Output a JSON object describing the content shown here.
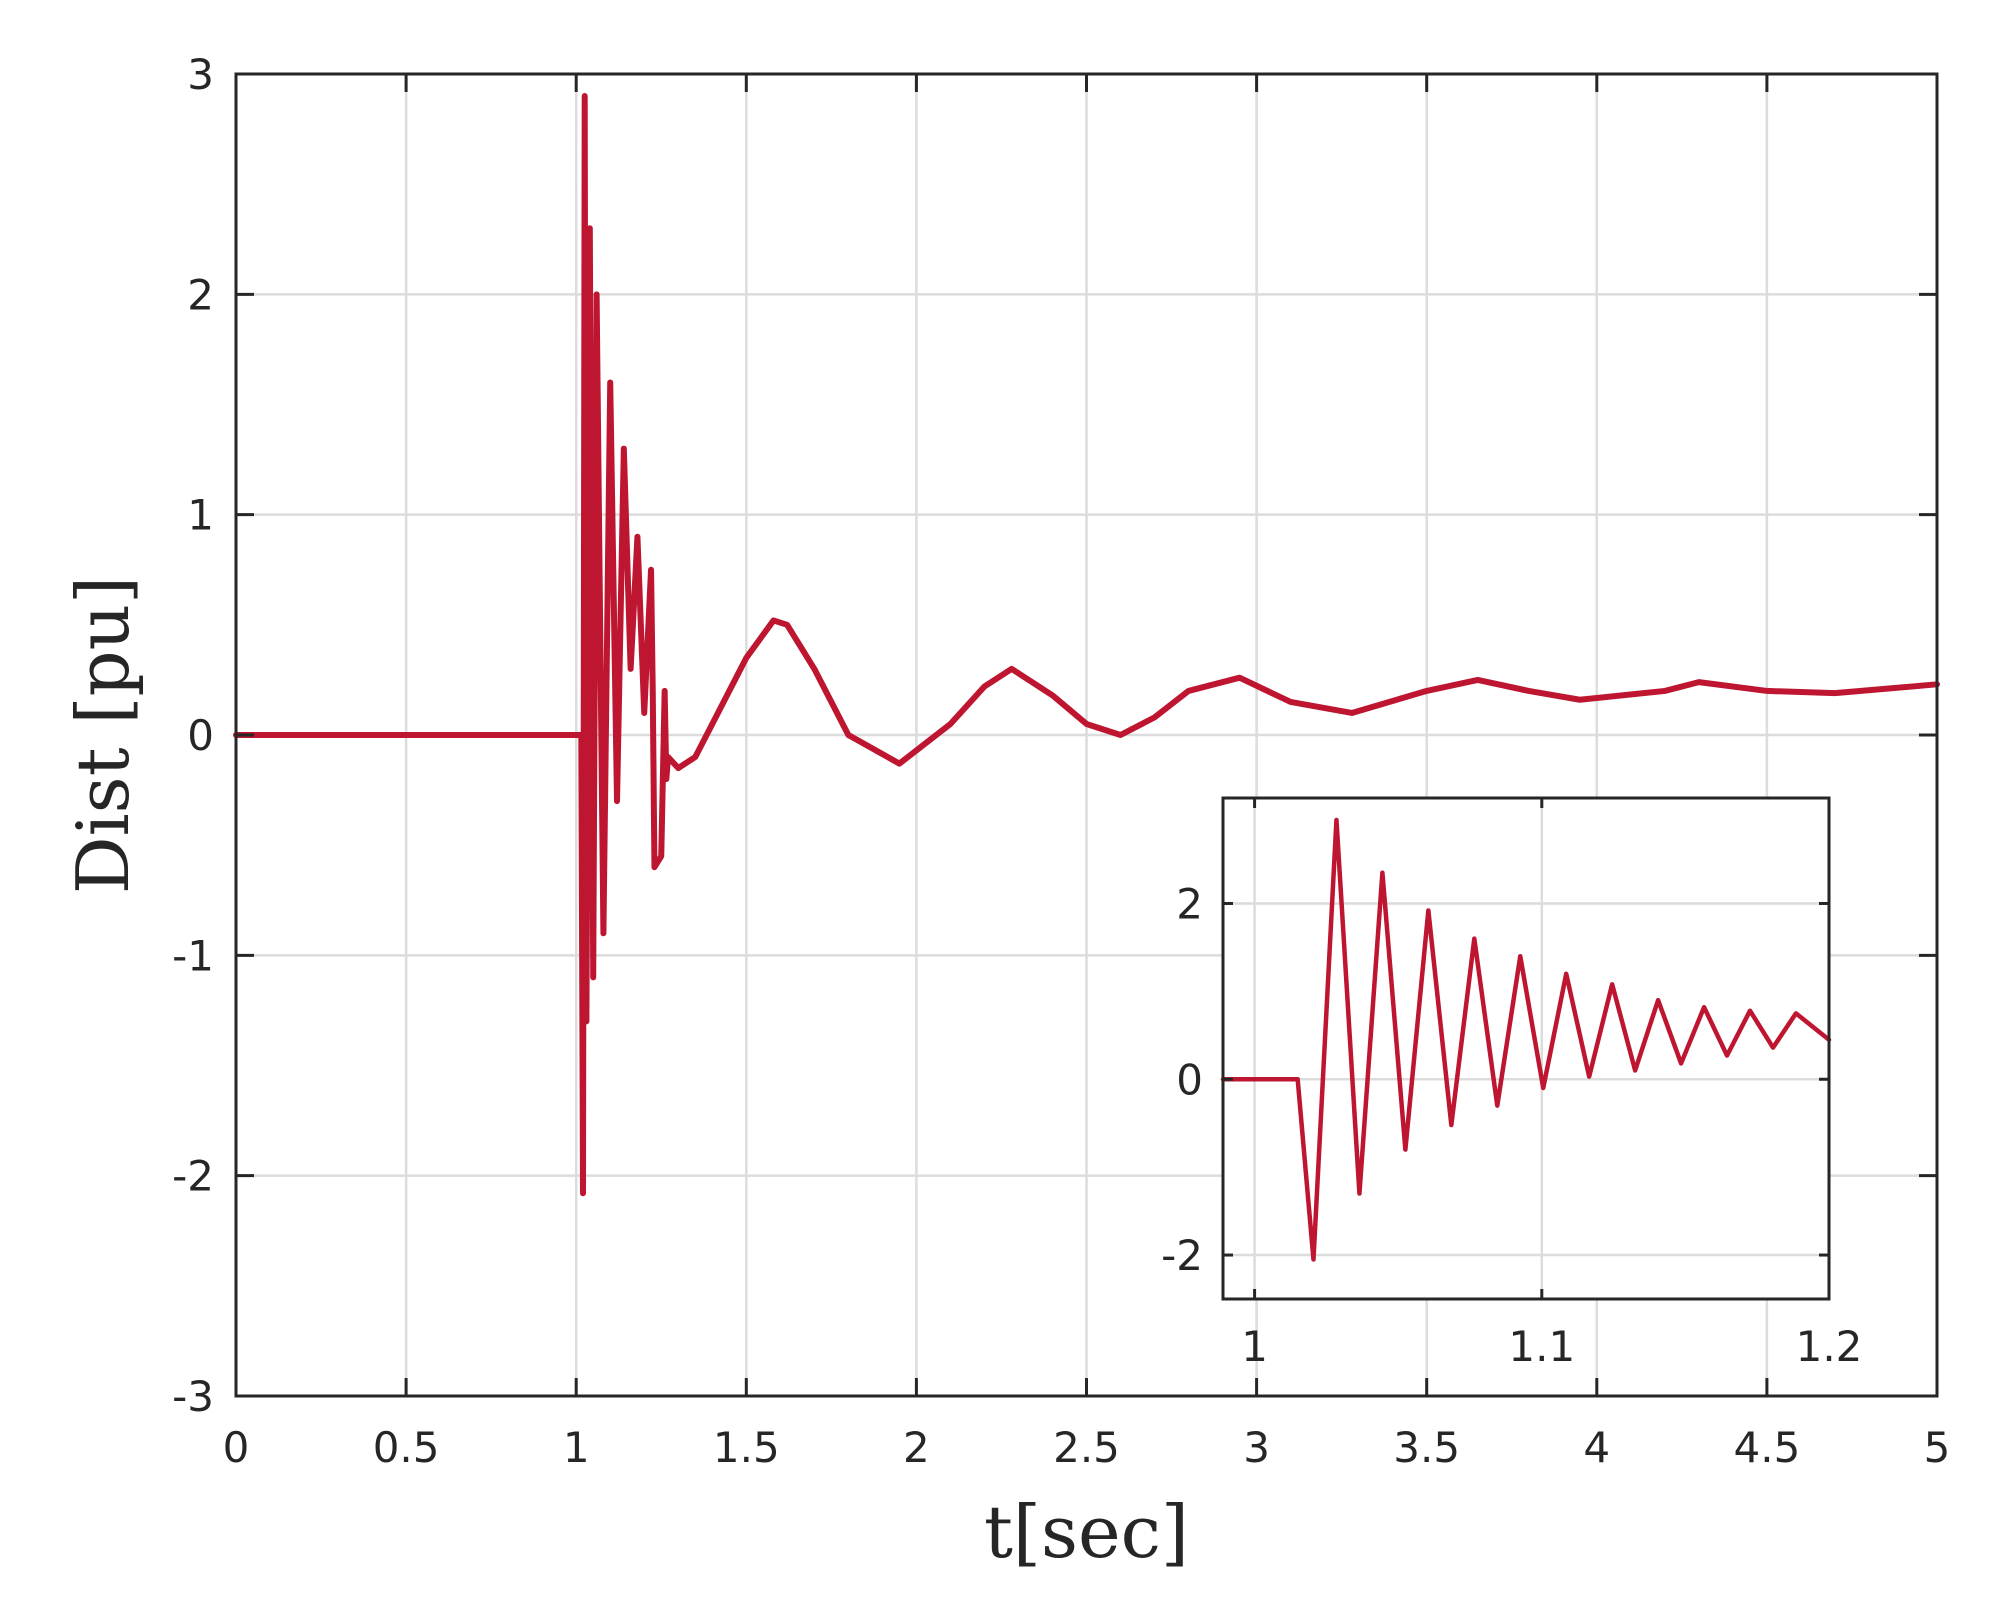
{
  "chart_data": [
    {
      "id": "main",
      "type": "line",
      "xlabel": "t[sec]",
      "ylabel": "Dist [pu]",
      "xlim": [
        0,
        5
      ],
      "ylim": [
        -3,
        3
      ],
      "grid": true,
      "color": "#BE1630",
      "xticks": [
        0,
        0.5,
        1,
        1.5,
        2,
        2.5,
        3,
        3.5,
        4,
        4.5,
        5
      ],
      "xtick_labels": [
        "0",
        "0.5",
        "1",
        "1.5",
        "2",
        "2.5",
        "3",
        "3.5",
        "4",
        "4.5",
        "5"
      ],
      "yticks": [
        -3,
        -2,
        -1,
        0,
        1,
        2,
        3
      ],
      "ytick_labels": [
        "-3",
        "-2",
        "-1",
        "0",
        "1",
        "2",
        "3"
      ],
      "series": [
        {
          "x": [
            0,
            1.015,
            1.02,
            1.025,
            1.03,
            1.04,
            1.05,
            1.06,
            1.08,
            1.1,
            1.12,
            1.14,
            1.16,
            1.18,
            1.2,
            1.22,
            1.225,
            1.23,
            1.25,
            1.26,
            1.265,
            1.27,
            1.3,
            1.35,
            1.4,
            1.5,
            1.58,
            1.62,
            1.7,
            1.8,
            1.95,
            2.1,
            2.2,
            2.28,
            2.4,
            2.5,
            2.6,
            2.7,
            2.8,
            2.95,
            3.1,
            3.28,
            3.5,
            3.65,
            3.8,
            3.95,
            4.2,
            4.3,
            4.5,
            4.7,
            5
          ],
          "y": [
            0,
            0,
            -2.08,
            2.9,
            -1.3,
            2.3,
            -1.1,
            2.0,
            -0.9,
            1.6,
            -0.3,
            1.3,
            0.3,
            0.9,
            0.1,
            0.75,
            0.2,
            -0.6,
            -0.55,
            0.2,
            -0.2,
            -0.1,
            -0.15,
            -0.1,
            0.05,
            0.35,
            0.52,
            0.5,
            0.3,
            0.0,
            -0.13,
            0.05,
            0.22,
            0.3,
            0.18,
            0.05,
            0.0,
            0.08,
            0.2,
            0.26,
            0.15,
            0.1,
            0.2,
            0.25,
            0.2,
            0.16,
            0.2,
            0.24,
            0.2,
            0.19,
            0.23
          ]
        }
      ]
    },
    {
      "id": "inset",
      "type": "line",
      "xlim": [
        0.989,
        1.2
      ],
      "ylim": [
        -2.5,
        3.2
      ],
      "grid": true,
      "color": "#BE1630",
      "xticks": [
        1,
        1.1,
        1.2
      ],
      "xtick_labels": [
        "1",
        "1.1",
        "1.2"
      ],
      "yticks": [
        -2,
        0,
        2
      ],
      "ytick_labels": [
        "-2",
        "0",
        "2"
      ],
      "series": [
        {
          "x": [
            0.989,
            1.015,
            1.0205,
            1.0285,
            1.0365,
            1.0445,
            1.0525,
            1.0605,
            1.0685,
            1.0765,
            1.0845,
            1.0925,
            1.1005,
            1.1085,
            1.1165,
            1.1245,
            1.1325,
            1.1405,
            1.1485,
            1.1565,
            1.1645,
            1.1725,
            1.1805,
            1.1885,
            1.2
          ],
          "y": [
            0,
            0,
            -2.05,
            2.95,
            -1.3,
            2.35,
            -0.8,
            1.92,
            -0.52,
            1.6,
            -0.3,
            1.4,
            -0.1,
            1.2,
            0.03,
            1.08,
            0.1,
            0.9,
            0.18,
            0.82,
            0.27,
            0.78,
            0.36,
            0.75,
            0.45
          ]
        }
      ]
    }
  ]
}
